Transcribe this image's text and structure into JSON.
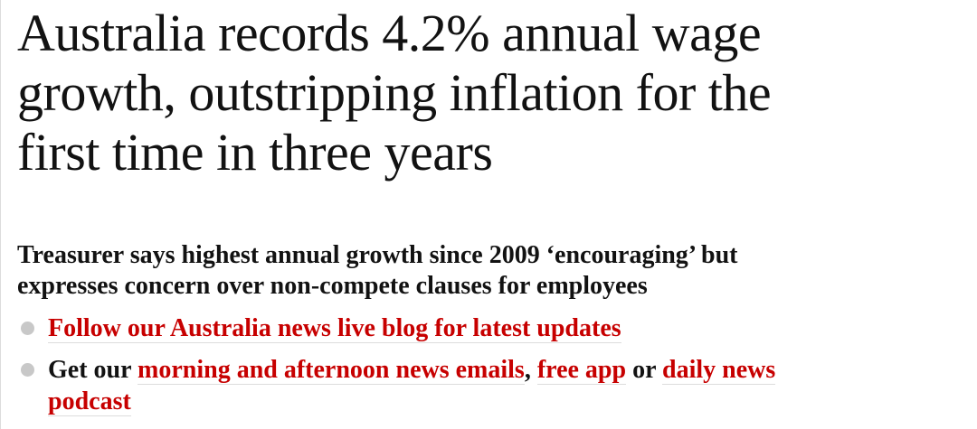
{
  "headline": [
    "Australia records 4.2% annual wage",
    "growth, outstripping inflation for the",
    "first time in three years"
  ],
  "standfirst": [
    "Treasurer says highest annual growth since 2009 ‘encouraging’ but",
    "expresses concern over non-compete clauses for employees"
  ],
  "bullets": [
    {
      "parts": [
        {
          "text": "Follow our Australia news live blog for latest updates",
          "link": true
        }
      ]
    },
    {
      "parts": [
        {
          "text": "Get our ",
          "link": false
        },
        {
          "text": "morning and afternoon news emails",
          "link": true
        },
        {
          "text": ", ",
          "link": false
        },
        {
          "text": "free app",
          "link": true
        },
        {
          "text": " or ",
          "link": false
        },
        {
          "text": "daily news podcast",
          "link": true
        }
      ]
    }
  ]
}
